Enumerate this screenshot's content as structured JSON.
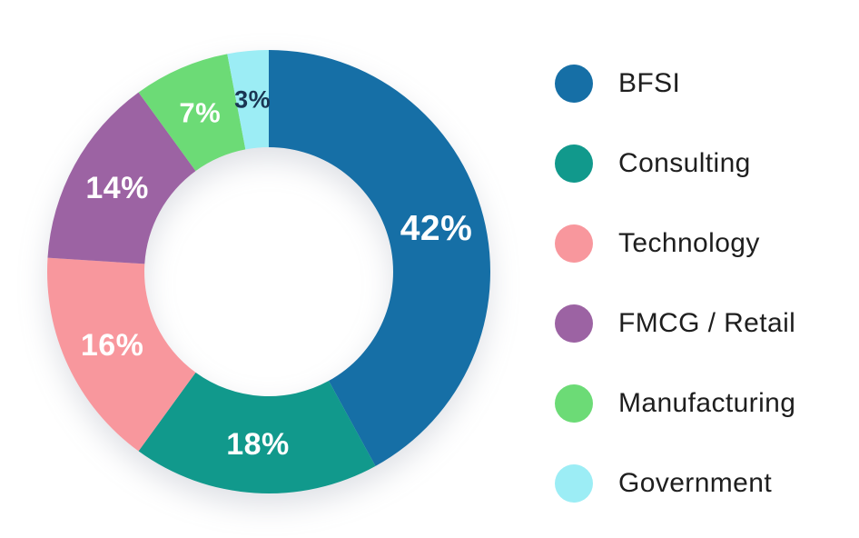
{
  "chart_data": {
    "type": "pie",
    "subtype": "donut",
    "title": "",
    "categories": [
      "BFSI",
      "Consulting",
      "Technology",
      "FMCG / Retail",
      "Manufacturing",
      "Government"
    ],
    "values": [
      42,
      18,
      16,
      14,
      7,
      3
    ],
    "labels": [
      "42%",
      "18%",
      "16%",
      "14%",
      "7%",
      "3%"
    ],
    "colors": [
      "#166FA6",
      "#11998C",
      "#F8979D",
      "#9C63A3",
      "#6CDB76",
      "#9CEDF5"
    ],
    "label_colors": [
      "#FFFFFF",
      "#FFFFFF",
      "#FFFFFF",
      "#FFFFFF",
      "#FFFFFF",
      "#1A3553"
    ],
    "start_angle_deg": 0,
    "direction": "clockwise",
    "inner_radius_ratio": 0.56,
    "legend_position": "right",
    "background_color": "#FFFFFF"
  }
}
